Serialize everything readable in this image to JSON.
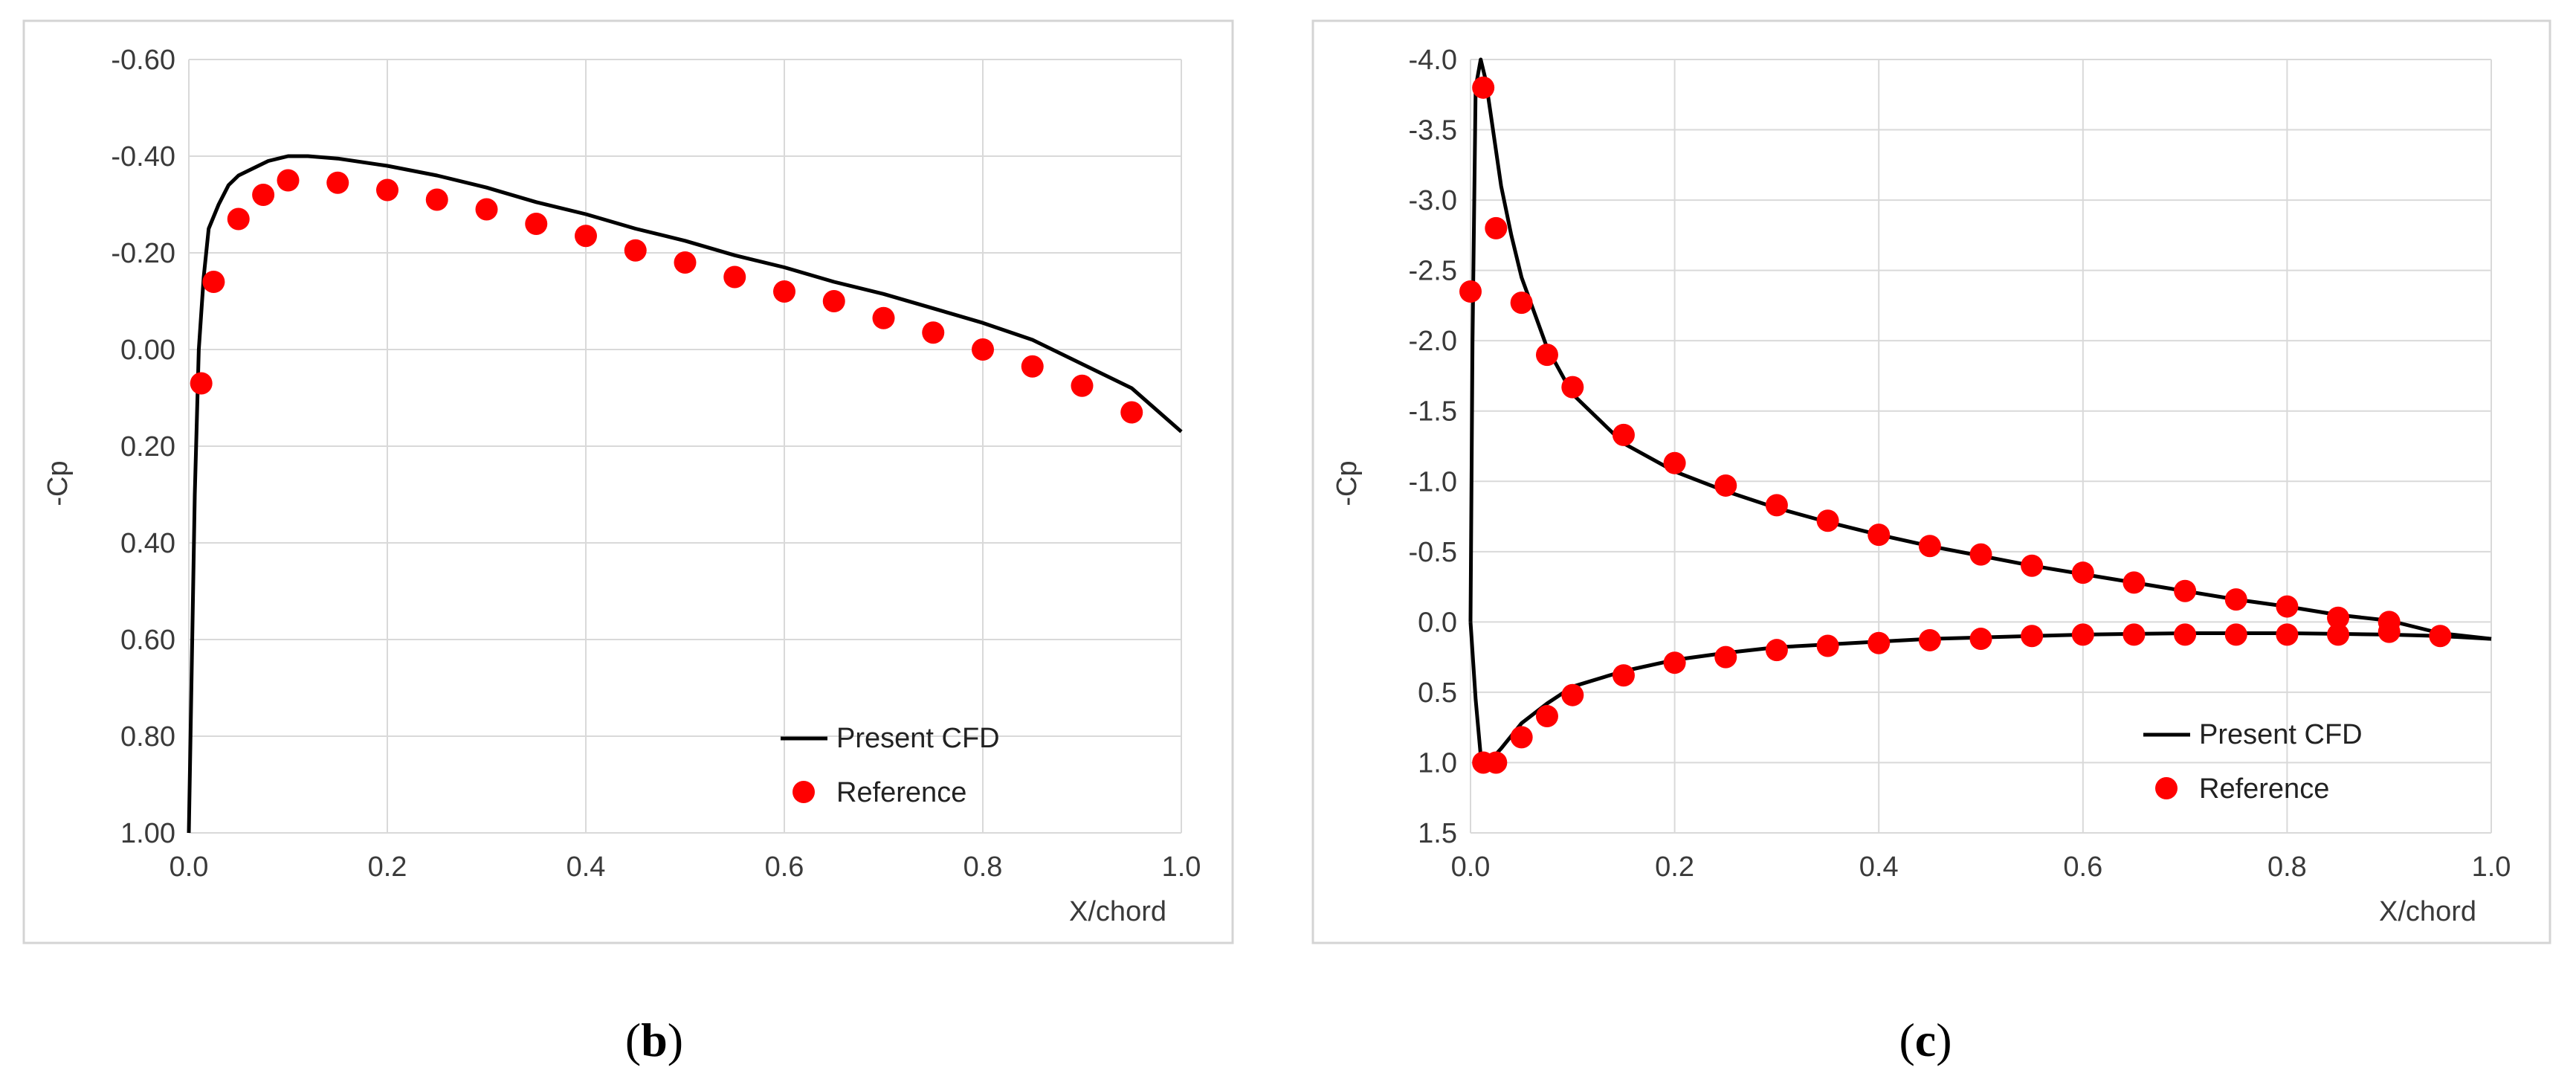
{
  "chart_data": [
    {
      "type": "line+scatter",
      "panel_caption": {
        "open": "(",
        "letter": "b",
        "close": ")"
      },
      "xlabel": "X/chord",
      "ylabel": "-Cp",
      "xlim": [
        0.0,
        1.0
      ],
      "ylim_top": -0.6,
      "ylim_bottom": 1.0,
      "x_ticks": [
        "0.0",
        "0.2",
        "0.4",
        "0.6",
        "0.8",
        "1.0"
      ],
      "y_tick_values": [
        -0.6,
        -0.4,
        -0.2,
        0.0,
        0.2,
        0.4,
        0.6,
        0.8,
        1.0
      ],
      "y_tick_labels": [
        "-0.60",
        "-0.40",
        "-0.20",
        "0.00",
        "0.20",
        "0.40",
        "0.60",
        "0.80",
        "1.00"
      ],
      "grid": true,
      "legend": {
        "position": "bottom-right",
        "line_label": "Present CFD",
        "marker_label": "Reference"
      },
      "series": [
        {
          "name": "Present CFD",
          "kind": "line",
          "color": "#000000",
          "x": [
            0.0,
            0.003,
            0.006,
            0.01,
            0.015,
            0.02,
            0.03,
            0.04,
            0.05,
            0.06,
            0.08,
            0.1,
            0.12,
            0.15,
            0.2,
            0.25,
            0.3,
            0.35,
            0.4,
            0.45,
            0.5,
            0.55,
            0.6,
            0.65,
            0.7,
            0.75,
            0.8,
            0.85,
            0.9,
            0.95,
            1.0
          ],
          "y": [
            1.0,
            0.65,
            0.3,
            0.0,
            -0.15,
            -0.25,
            -0.3,
            -0.34,
            -0.36,
            -0.37,
            -0.39,
            -0.4,
            -0.4,
            -0.395,
            -0.38,
            -0.36,
            -0.335,
            -0.305,
            -0.28,
            -0.25,
            -0.225,
            -0.195,
            -0.17,
            -0.14,
            -0.115,
            -0.085,
            -0.055,
            -0.02,
            0.03,
            0.08,
            0.17
          ]
        },
        {
          "name": "Reference",
          "kind": "scatter",
          "color": "#ff0000",
          "x": [
            0.0125,
            0.025,
            0.05,
            0.075,
            0.1,
            0.15,
            0.2,
            0.25,
            0.3,
            0.35,
            0.4,
            0.45,
            0.5,
            0.55,
            0.6,
            0.65,
            0.7,
            0.75,
            0.8,
            0.85,
            0.9,
            0.95
          ],
          "y": [
            0.07,
            -0.14,
            -0.27,
            -0.32,
            -0.35,
            -0.345,
            -0.33,
            -0.31,
            -0.29,
            -0.26,
            -0.235,
            -0.205,
            -0.18,
            -0.15,
            -0.12,
            -0.1,
            -0.065,
            -0.035,
            0.0,
            0.035,
            0.075,
            0.13
          ]
        }
      ]
    },
    {
      "type": "line+scatter",
      "panel_caption": {
        "open": "(",
        "letter": "c",
        "close": ")"
      },
      "xlabel": "X/chord",
      "ylabel": "-Cp",
      "xlim": [
        0.0,
        1.0
      ],
      "ylim_top": -4.0,
      "ylim_bottom": 1.5,
      "x_ticks": [
        "0.0",
        "0.2",
        "0.4",
        "0.6",
        "0.8",
        "1.0"
      ],
      "y_tick_values": [
        -4.0,
        -3.5,
        -3.0,
        -2.5,
        -2.0,
        -1.5,
        -1.0,
        -0.5,
        0.0,
        0.5,
        1.0,
        1.5
      ],
      "y_tick_labels": [
        "-4.0",
        "-3.5",
        "-3.0",
        "-2.5",
        "-2.0",
        "-1.5",
        "-1.0",
        "-0.5",
        "0.0",
        "0.5",
        "1.0",
        "1.5"
      ],
      "grid": true,
      "legend": {
        "position": "bottom-right",
        "line_label": "Present CFD",
        "marker_label": "Reference"
      },
      "series": [
        {
          "name": "Present CFD (upper)",
          "kind": "line",
          "color": "#000000",
          "x": [
            0.0,
            0.002,
            0.005,
            0.01,
            0.015,
            0.02,
            0.03,
            0.04,
            0.05,
            0.075,
            0.1,
            0.15,
            0.2,
            0.25,
            0.3,
            0.35,
            0.4,
            0.45,
            0.5,
            0.55,
            0.6,
            0.65,
            0.7,
            0.75,
            0.8,
            0.85,
            0.9,
            0.95,
            1.0
          ],
          "y": [
            0.0,
            -2.0,
            -3.8,
            -4.0,
            -3.85,
            -3.6,
            -3.1,
            -2.75,
            -2.45,
            -1.95,
            -1.62,
            -1.27,
            -1.07,
            -0.93,
            -0.81,
            -0.71,
            -0.62,
            -0.54,
            -0.47,
            -0.4,
            -0.34,
            -0.28,
            -0.22,
            -0.16,
            -0.11,
            -0.05,
            -0.01,
            0.08,
            0.12
          ]
        },
        {
          "name": "Present CFD (lower)",
          "kind": "line",
          "color": "#000000",
          "x": [
            0.0,
            0.005,
            0.01,
            0.015,
            0.02,
            0.03,
            0.05,
            0.075,
            0.1,
            0.15,
            0.2,
            0.25,
            0.3,
            0.35,
            0.4,
            0.45,
            0.5,
            0.55,
            0.6,
            0.65,
            0.7,
            0.75,
            0.8,
            0.85,
            0.9,
            0.95,
            1.0
          ],
          "y": [
            0.0,
            0.55,
            0.95,
            1.0,
            0.98,
            0.9,
            0.72,
            0.58,
            0.46,
            0.35,
            0.27,
            0.22,
            0.18,
            0.16,
            0.14,
            0.12,
            0.11,
            0.1,
            0.09,
            0.085,
            0.08,
            0.08,
            0.08,
            0.085,
            0.09,
            0.1,
            0.12
          ]
        },
        {
          "name": "Reference (upper)",
          "kind": "scatter",
          "color": "#ff0000",
          "x": [
            0.0,
            0.0125,
            0.025,
            0.05,
            0.075,
            0.1,
            0.15,
            0.2,
            0.25,
            0.3,
            0.35,
            0.4,
            0.45,
            0.5,
            0.55,
            0.6,
            0.65,
            0.7,
            0.75,
            0.8,
            0.85,
            0.9
          ],
          "y": [
            -2.35,
            -3.8,
            -2.8,
            -2.27,
            -1.9,
            -1.67,
            -1.33,
            -1.13,
            -0.97,
            -0.83,
            -0.72,
            -0.62,
            -0.54,
            -0.48,
            -0.4,
            -0.35,
            -0.28,
            -0.22,
            -0.16,
            -0.11,
            -0.03,
            0.0
          ]
        },
        {
          "name": "Reference (lower)",
          "kind": "scatter",
          "color": "#ff0000",
          "x": [
            0.0125,
            0.025,
            0.05,
            0.075,
            0.1,
            0.15,
            0.2,
            0.25,
            0.3,
            0.35,
            0.4,
            0.45,
            0.5,
            0.55,
            0.6,
            0.65,
            0.7,
            0.75,
            0.8,
            0.85,
            0.9,
            0.95
          ],
          "y": [
            1.0,
            1.0,
            0.82,
            0.67,
            0.52,
            0.38,
            0.29,
            0.25,
            0.2,
            0.17,
            0.15,
            0.13,
            0.12,
            0.1,
            0.09,
            0.09,
            0.09,
            0.09,
            0.09,
            0.09,
            0.07,
            0.1
          ]
        }
      ]
    }
  ]
}
